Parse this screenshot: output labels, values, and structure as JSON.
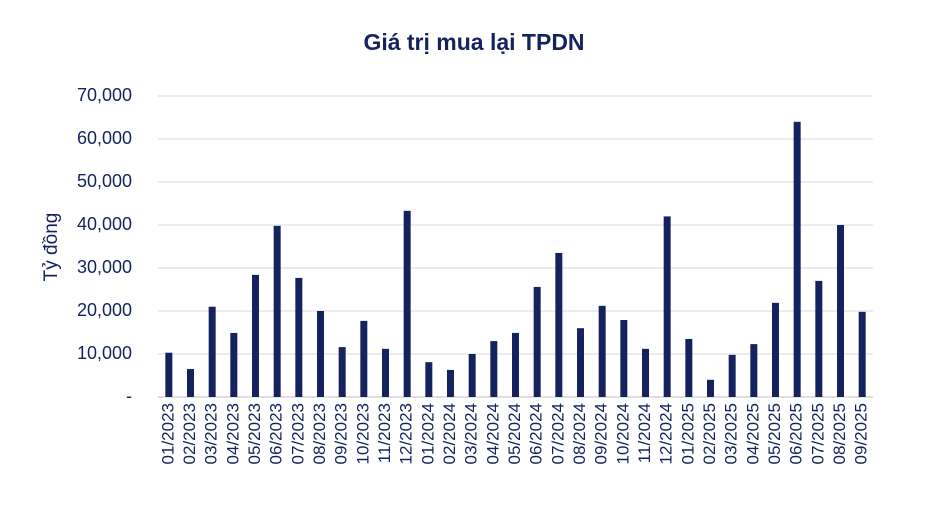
{
  "chart_data": {
    "type": "bar",
    "title": "Giá trị mua lại TPDN",
    "y_label": "Tỷ đồng",
    "categories": [
      "01/2023",
      "02/2023",
      "03/2023",
      "04/2023",
      "05/2023",
      "06/2023",
      "07/2023",
      "08/2023",
      "09/2023",
      "10/2023",
      "11/2023",
      "12/2023",
      "01/2024",
      "02/2024",
      "03/2024",
      "04/2024",
      "05/2024",
      "06/2024",
      "07/2024",
      "08/2024",
      "09/2024",
      "10/2024",
      "11/2024",
      "12/2024",
      "01/2025",
      "02/2025",
      "03/2025",
      "04/2025",
      "05/2025",
      "06/2025",
      "07/2025",
      "08/2025",
      "09/2025"
    ],
    "values": [
      10300,
      6500,
      21000,
      14900,
      28400,
      39800,
      27700,
      20000,
      11600,
      17700,
      11200,
      43300,
      8100,
      6300,
      10000,
      13000,
      14900,
      25600,
      33500,
      16000,
      21200,
      17900,
      11200,
      42000,
      13500,
      4000,
      9800,
      12300,
      21900,
      64000,
      27000,
      40000,
      19800
    ],
    "color": "#14235e",
    "ylim": [
      0,
      70000
    ],
    "yticks": [
      {
        "value": 0,
        "label": "-"
      },
      {
        "value": 10000,
        "label": "10,000"
      },
      {
        "value": 20000,
        "label": "20,000"
      },
      {
        "value": 30000,
        "label": "30,000"
      },
      {
        "value": 40000,
        "label": "40,000"
      },
      {
        "value": 50000,
        "label": "50,000"
      },
      {
        "value": 60000,
        "label": "60,000"
      },
      {
        "value": 70000,
        "label": "70,000"
      }
    ],
    "grid": true
  }
}
